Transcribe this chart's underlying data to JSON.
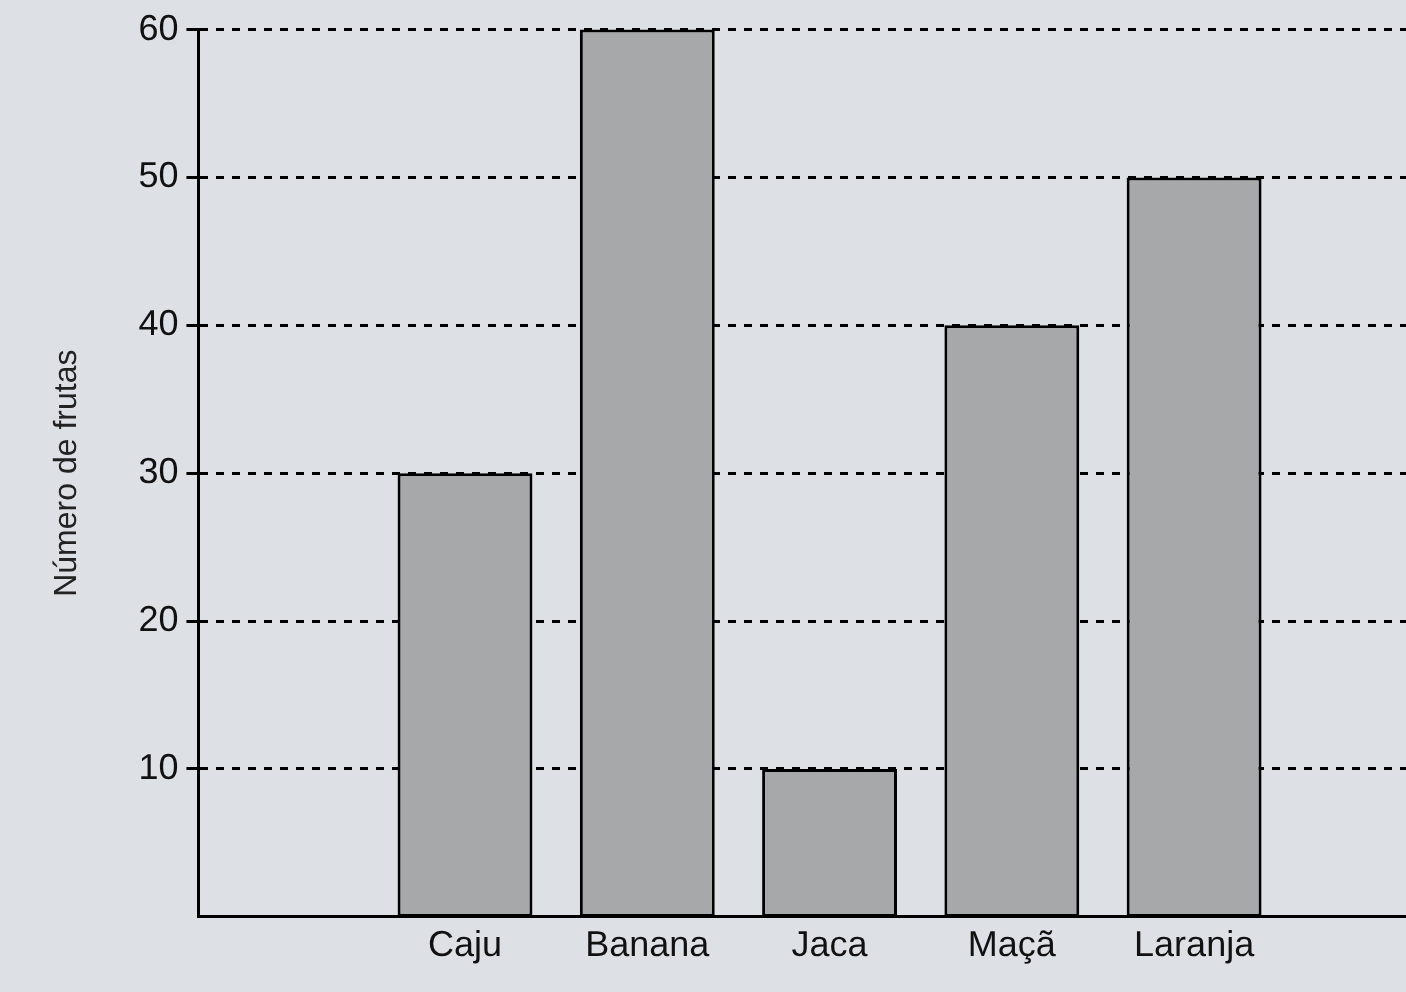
{
  "chart_data": {
    "type": "bar",
    "ylabel": "Número de frutas",
    "categories": [
      "Caju",
      "Banana",
      "Jaca",
      "Maçã",
      "Laranja"
    ],
    "values": [
      30,
      60,
      10,
      40,
      50
    ],
    "color": "#a7a8aa",
    "ylim": [
      0,
      60
    ],
    "yticks": [
      10,
      20,
      30,
      40,
      50,
      60
    ],
    "grid": "y"
  }
}
